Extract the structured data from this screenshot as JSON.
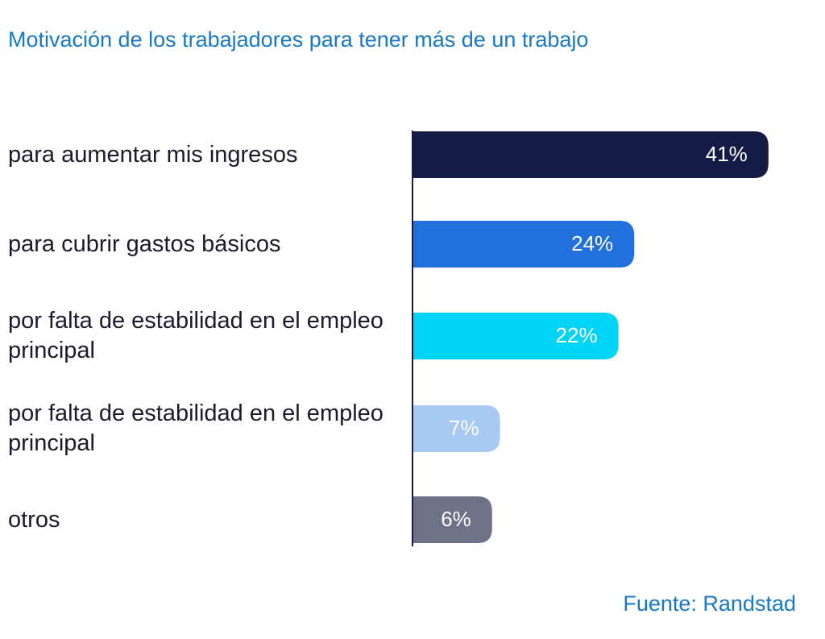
{
  "chart_data": {
    "type": "bar",
    "orientation": "horizontal",
    "title": "Motivación de los trabajadores para tener más de un trabajo",
    "categories": [
      "para aumentar mis ingresos",
      "para cubrir gastos básicos",
      "por falta de estabilidad en el empleo principal",
      "por falta de estabilidad en el empleo principal",
      "otros"
    ],
    "values": [
      41,
      24,
      22,
      7,
      6
    ],
    "value_labels": [
      "41%",
      "24%",
      "22%",
      "7%",
      "6%"
    ],
    "colors": [
      "#141b45",
      "#2170dc",
      "#00d4f5",
      "#a8c9f2",
      "#6f7287"
    ],
    "source": "Fuente: Randstad"
  }
}
